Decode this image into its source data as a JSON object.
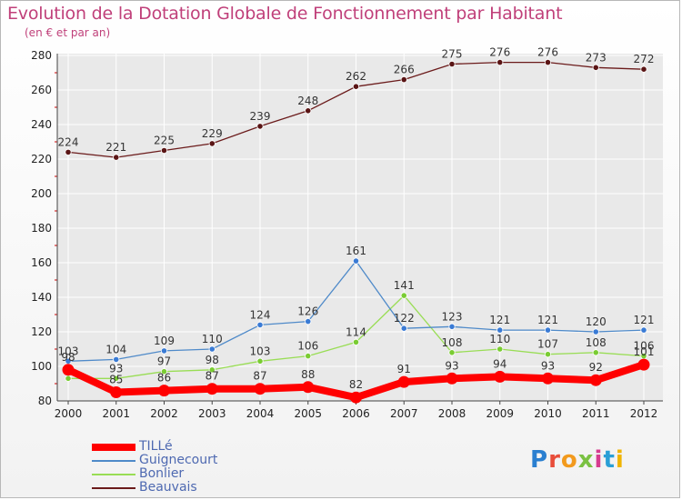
{
  "chart": {
    "title": "Evolution de la Dotation Globale de Fonctionnement par Habitant",
    "subtitle": "(en € et par an)"
  },
  "colors": {
    "axis": "#444444",
    "grid": "#ffffff",
    "tick_mark": "#cc0000"
  },
  "chart_data": {
    "type": "line",
    "title": "Evolution de la Dotation Globale de Fonctionnement par Habitant",
    "subtitle": "(en € et par an)",
    "xlabel": "",
    "ylabel": "",
    "ylim": [
      80,
      280
    ],
    "yticks": [
      80,
      100,
      120,
      140,
      160,
      180,
      200,
      220,
      240,
      260,
      280
    ],
    "grid": true,
    "legend_position": "bottom-left",
    "categories": [
      "2000",
      "2001",
      "2002",
      "2003",
      "2004",
      "2005",
      "2006",
      "2007",
      "2008",
      "2009",
      "2010",
      "2011",
      "2012"
    ],
    "series": [
      {
        "name": "TILLé",
        "color": "#ff0000",
        "values": [
          98,
          85,
          86,
          87,
          87,
          88,
          82,
          91,
          93,
          94,
          93,
          92,
          101
        ],
        "labels": [
          "98",
          "85",
          "86",
          "87",
          "87",
          "88",
          "82",
          "91",
          "93",
          "94",
          "93",
          "92",
          "101"
        ]
      },
      {
        "name": "Guignecourt",
        "color": "#4f8ac9",
        "values": [
          103,
          104,
          109,
          110,
          124,
          126,
          161,
          122,
          123,
          121,
          121,
          120,
          121
        ],
        "labels": [
          "103",
          "104",
          "109",
          "110",
          "124",
          "126",
          "161",
          "122",
          "123",
          "121",
          "121",
          "120",
          "121"
        ]
      },
      {
        "name": "Bonlier",
        "color": "#99dd55",
        "values": [
          93,
          93,
          97,
          98,
          103,
          106,
          114,
          141,
          108,
          110,
          107,
          108,
          106
        ],
        "labels": [
          "",
          "93",
          "97",
          "98",
          "103",
          "106",
          "114",
          "141",
          "108",
          "110",
          "107",
          "108",
          "106"
        ]
      },
      {
        "name": "Beauvais",
        "color": "#6b1b1b",
        "values": [
          224,
          221,
          225,
          229,
          239,
          248,
          262,
          266,
          275,
          276,
          276,
          273,
          272
        ],
        "labels": [
          "224",
          "221",
          "225",
          "229",
          "239",
          "248",
          "262",
          "266",
          "275",
          "276",
          "276",
          "273",
          "272"
        ]
      }
    ]
  },
  "logo": {
    "text": "Proxiti"
  }
}
